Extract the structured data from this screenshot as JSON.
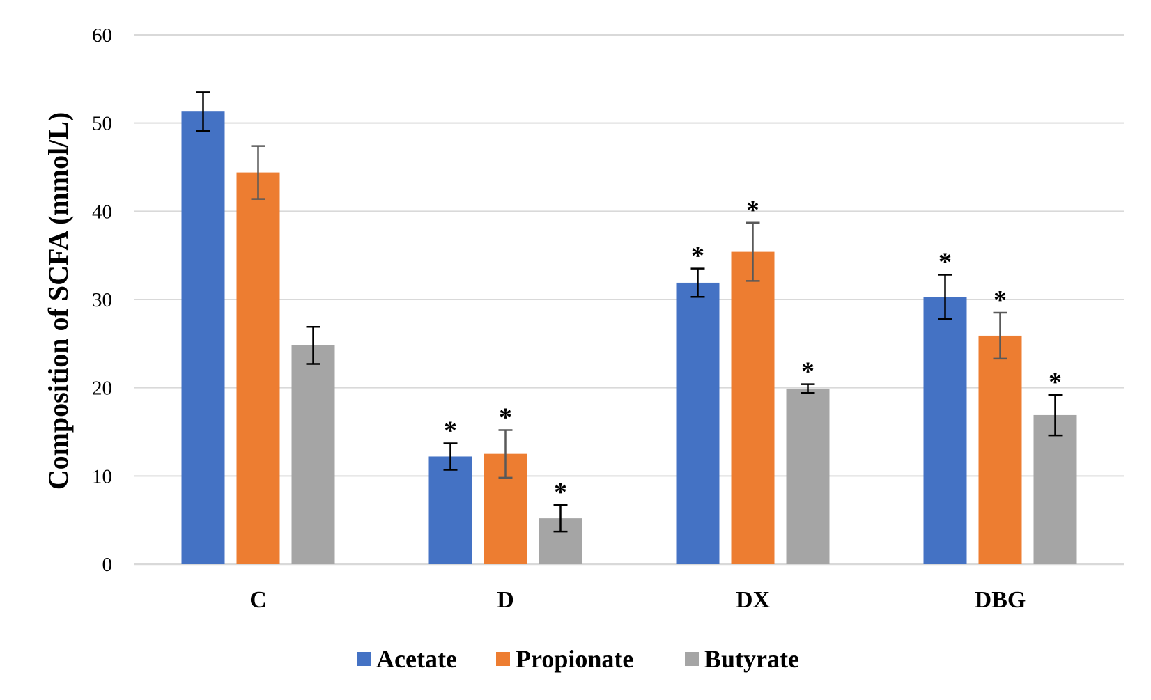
{
  "chart_data": {
    "type": "bar",
    "title": "",
    "xlabel": "",
    "ylabel": "Composition of SCFA (mmol/L)",
    "ylim": [
      0,
      60
    ],
    "yticks": [
      0,
      10,
      20,
      30,
      40,
      50,
      60
    ],
    "grid": true,
    "legend_position": "bottom",
    "categories": [
      "C",
      "D",
      "DX",
      "DBG"
    ],
    "series": [
      {
        "name": "Acetate",
        "color": "#4472c4",
        "values": [
          51.3,
          12.2,
          31.9,
          30.3
        ],
        "errors": [
          2.2,
          1.5,
          1.6,
          2.5
        ],
        "significant": [
          false,
          true,
          true,
          true
        ]
      },
      {
        "name": "Propionate",
        "color": "#ed7d31",
        "values": [
          44.4,
          12.5,
          35.4,
          25.9
        ],
        "errors": [
          3.0,
          2.7,
          3.3,
          2.6
        ],
        "significant": [
          false,
          true,
          true,
          true
        ]
      },
      {
        "name": "Butyrate",
        "color": "#a5a5a5",
        "values": [
          24.8,
          5.2,
          19.9,
          16.9
        ],
        "errors": [
          2.1,
          1.5,
          0.5,
          2.3
        ],
        "significant": [
          false,
          true,
          true,
          true
        ]
      }
    ],
    "significance_marker": "*"
  }
}
